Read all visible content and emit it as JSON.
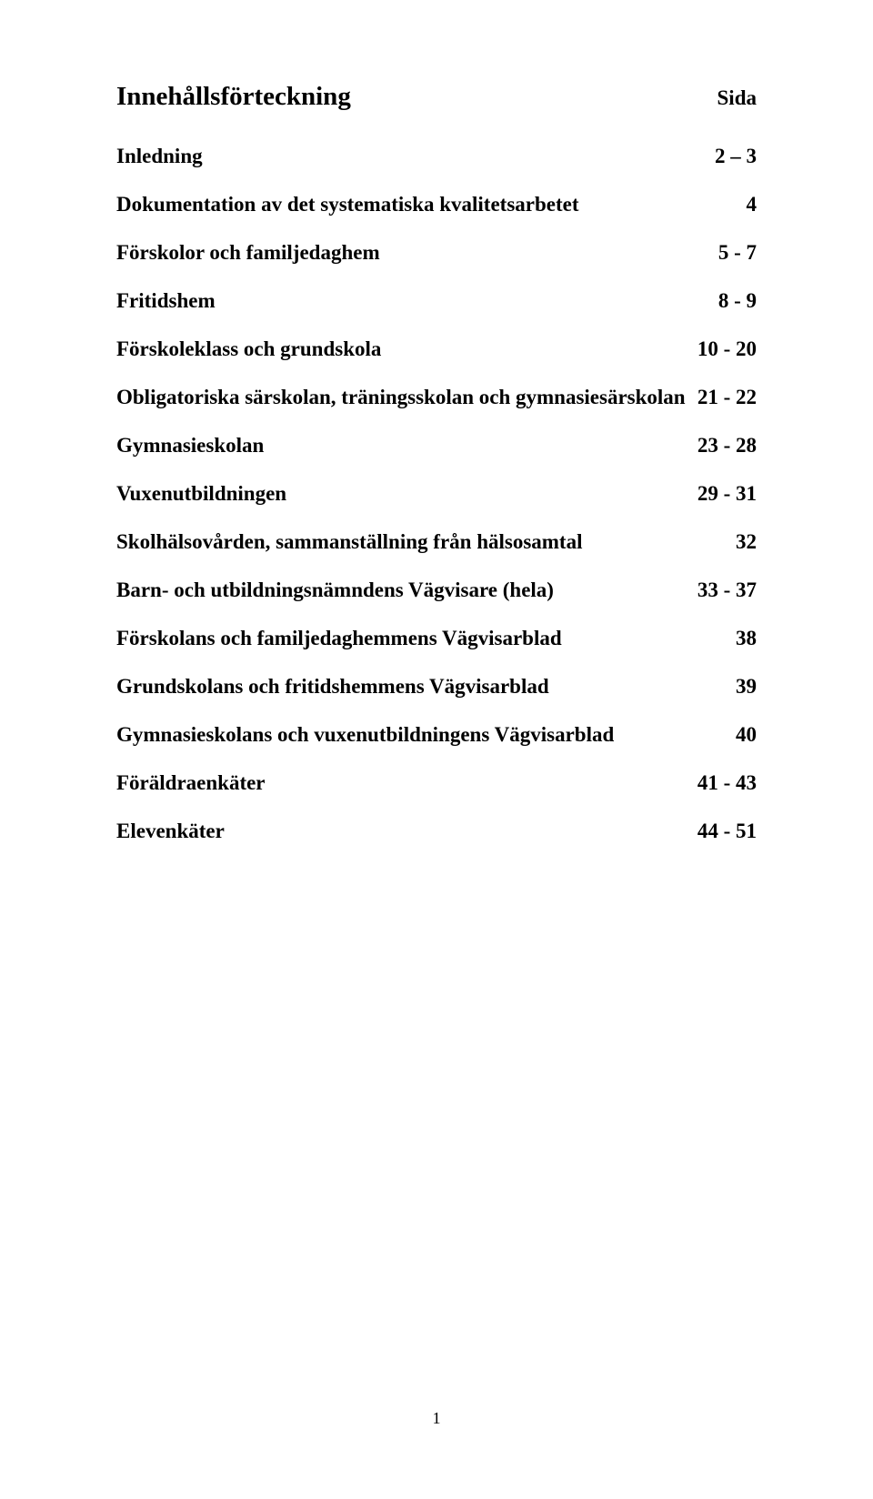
{
  "title": {
    "left": "Innehållsförteckning",
    "right": "Sida"
  },
  "entries": [
    {
      "label": "Inledning",
      "page": "2 – 3"
    },
    {
      "label": "Dokumentation av det systematiska kvalitetsarbetet",
      "page": "4"
    },
    {
      "label": "Förskolor och familjedaghem",
      "page": "5 - 7"
    },
    {
      "label": "Fritidshem",
      "page": "8 - 9"
    },
    {
      "label": "Förskoleklass och grundskola",
      "page": "10 - 20"
    },
    {
      "label": "Obligatoriska särskolan, träningsskolan och gymnasiesärskolan",
      "page": "21 - 22"
    },
    {
      "label": "Gymnasieskolan",
      "page": "23 - 28"
    },
    {
      "label": "Vuxenutbildningen",
      "page": "29 - 31"
    },
    {
      "label": "Skolhälsovården, sammanställning från hälsosamtal",
      "page": "32"
    },
    {
      "label": "Barn- och utbildningsnämndens Vägvisare (hela)",
      "page": "33 - 37"
    },
    {
      "label": "Förskolans och familjedaghemmens Vägvisarblad",
      "page": "38"
    },
    {
      "label": "Grundskolans och fritidshemmens Vägvisarblad",
      "page": "39"
    },
    {
      "label": "Gymnasieskolans och vuxenutbildningens Vägvisarblad",
      "page": "40"
    },
    {
      "label": "Föräldraenkäter",
      "page": "41 - 43"
    },
    {
      "label": "Elevenkäter",
      "page": "44 - 51"
    }
  ],
  "pageNumber": "1"
}
